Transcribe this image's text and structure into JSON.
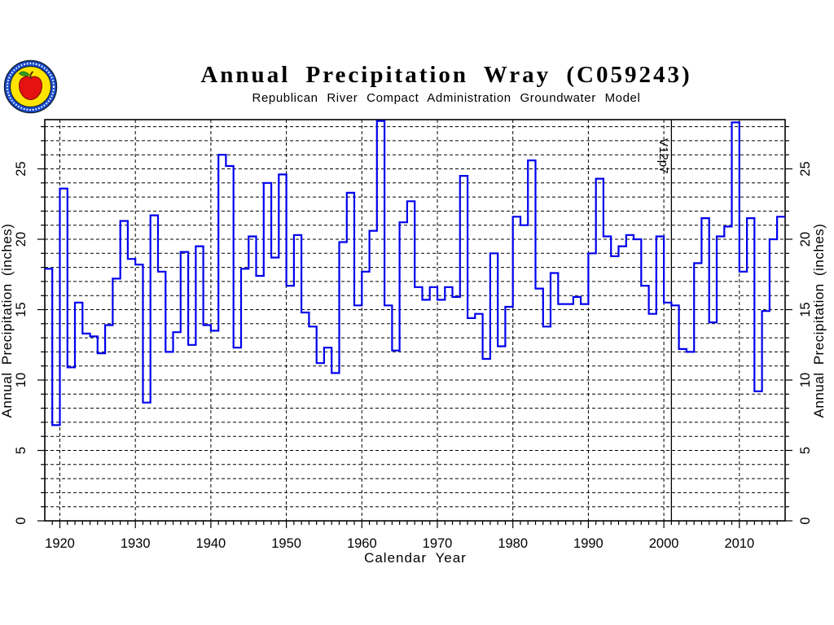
{
  "header": {
    "title": "Annual Precipitation Wray (C059243)",
    "subtitle": "Republican River Compact Administration Groundwater Model"
  },
  "logo": {
    "description": "circular seal with red apple on yellow field inside blue ring",
    "ring_color": "#1d4fd2",
    "ring_edge_color": "#10203a",
    "field_color": "#ffe400",
    "apple_color": "#e51212",
    "leaf_color": "#2f9e22",
    "stem_color": "#5a2d0c",
    "text_color": "#ffffff"
  },
  "chart_data": {
    "type": "line",
    "subtype": "step-post",
    "title": "Annual Precipitation Wray (C059243)",
    "subtitle": "Republican River Compact Administration Groundwater Model",
    "xlabel": "Calendar Year",
    "ylabel_left": "Annual Precipitation (inches)",
    "ylabel_right": "Annual Precipitation (inches)",
    "xlim": [
      1918,
      2016
    ],
    "ylim": [
      0,
      28.5
    ],
    "x_major_ticks": [
      1920,
      1930,
      1940,
      1950,
      1960,
      1970,
      1980,
      1990,
      2000,
      2010
    ],
    "x_minor_step_years": 1,
    "y_major_ticks": [
      0,
      5,
      10,
      15,
      20,
      25
    ],
    "y_minor_step": 1,
    "grid": {
      "style": "dashed",
      "horizontal_every_inch": 1,
      "vertical_at_major_years": true,
      "color": "#000000"
    },
    "line_color": "#0000ee",
    "frame_color": "#000000",
    "annotation": {
      "label": "V12p7",
      "year": 2001,
      "style": "vertical-line"
    },
    "years": [
      1918,
      1919,
      1920,
      1921,
      1922,
      1923,
      1924,
      1925,
      1926,
      1927,
      1928,
      1929,
      1930,
      1931,
      1932,
      1933,
      1934,
      1935,
      1936,
      1937,
      1938,
      1939,
      1940,
      1941,
      1942,
      1943,
      1944,
      1945,
      1946,
      1947,
      1948,
      1949,
      1950,
      1951,
      1952,
      1953,
      1954,
      1955,
      1956,
      1957,
      1958,
      1959,
      1960,
      1961,
      1962,
      1963,
      1964,
      1965,
      1966,
      1967,
      1968,
      1969,
      1970,
      1971,
      1972,
      1973,
      1974,
      1975,
      1976,
      1977,
      1978,
      1979,
      1980,
      1981,
      1982,
      1983,
      1984,
      1985,
      1986,
      1987,
      1988,
      1989,
      1990,
      1991,
      1992,
      1993,
      1994,
      1995,
      1996,
      1997,
      1998,
      1999,
      2000,
      2001,
      2002,
      2003,
      2004,
      2005,
      2006,
      2007,
      2008,
      2009,
      2010,
      2011,
      2012,
      2013,
      2014,
      2015
    ],
    "values": [
      17.9,
      6.8,
      23.6,
      10.9,
      15.5,
      13.3,
      13.1,
      11.9,
      13.9,
      17.2,
      21.3,
      18.6,
      18.2,
      8.4,
      21.7,
      17.7,
      12.0,
      13.4,
      19.1,
      12.5,
      19.5,
      13.9,
      13.5,
      26.0,
      25.2,
      12.3,
      17.9,
      20.2,
      17.4,
      24.0,
      18.7,
      24.6,
      16.7,
      20.3,
      14.8,
      13.8,
      11.2,
      12.3,
      10.5,
      19.8,
      23.3,
      15.3,
      17.7,
      20.6,
      28.4,
      15.3,
      12.1,
      21.2,
      22.7,
      16.6,
      15.7,
      16.6,
      15.7,
      16.6,
      15.9,
      24.5,
      14.4,
      14.7,
      11.5,
      19.0,
      12.4,
      15.2,
      21.6,
      21.0,
      25.6,
      16.5,
      13.8,
      17.6,
      15.4,
      15.4,
      15.9,
      15.4,
      19.0,
      24.3,
      20.2,
      18.8,
      19.5,
      20.3,
      20.0,
      16.7,
      14.7,
      20.2,
      15.5,
      15.3,
      12.2,
      12.0,
      18.3,
      21.5,
      14.1,
      20.2,
      20.9,
      28.3,
      17.7,
      21.5,
      9.2,
      14.9,
      20.0,
      21.6
    ]
  }
}
